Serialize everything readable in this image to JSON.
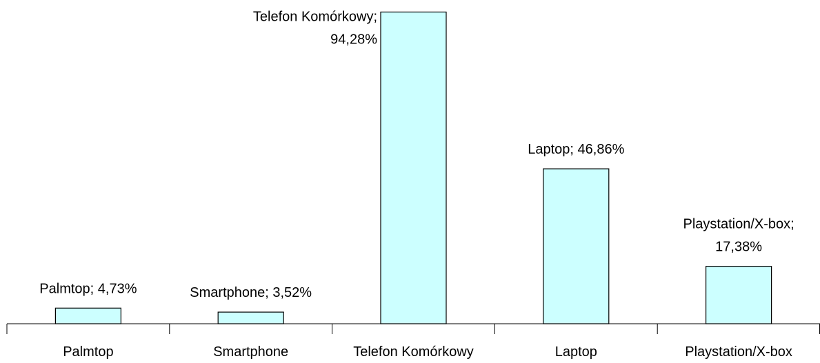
{
  "chart_data": {
    "type": "bar",
    "categories": [
      "Palmtop",
      "Smartphone",
      "Telefon Komórkowy",
      "Laptop",
      "Playstation/X-box"
    ],
    "values": [
      4.73,
      3.52,
      94.28,
      46.86,
      17.38
    ],
    "value_labels": [
      [
        "Palmtop; 4,73%"
      ],
      [
        "Smartphone; 3,52%"
      ],
      [
        "Telefon Komórkowy;",
        "94,28%"
      ],
      [
        "Laptop; 46,86%"
      ],
      [
        "Playstation/X-box;",
        "17,38%"
      ]
    ],
    "color": "#ccffff",
    "ylim": [
      0,
      95
    ]
  }
}
